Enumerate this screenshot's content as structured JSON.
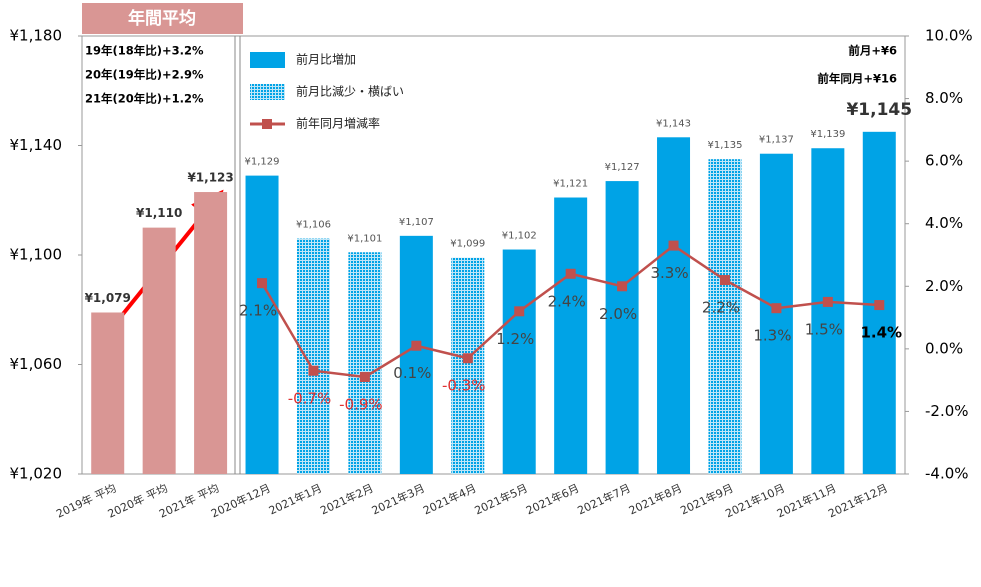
{
  "chart_data": {
    "type": "bar",
    "categories": [
      "2019年 平均",
      "2020年 平均",
      "2021年 平均",
      "2020年12月",
      "2021年1月",
      "2021年2月",
      "2021年3月",
      "2021年4月",
      "2021年5月",
      "2021年6月",
      "2021年7月",
      "2021年8月",
      "2021年9月",
      "2021年10月",
      "2021年11月",
      "2021年12月"
    ],
    "series": [
      {
        "name": "年間平均",
        "type": "bar",
        "color": "#d99694",
        "values": [
          1079,
          1110,
          1123,
          null,
          null,
          null,
          null,
          null,
          null,
          null,
          null,
          null,
          null,
          null,
          null,
          null
        ],
        "value_labels": [
          "¥1,079",
          "¥1,110",
          "¥1,123",
          null,
          null,
          null,
          null,
          null,
          null,
          null,
          null,
          null,
          null,
          null,
          null,
          null
        ]
      },
      {
        "name": "前月比増加",
        "type": "bar",
        "color": "#00a3e6",
        "values": [
          null,
          null,
          null,
          1129,
          null,
          null,
          1107,
          null,
          1102,
          1121,
          1127,
          1143,
          null,
          1137,
          1139,
          1145
        ],
        "value_labels": [
          null,
          null,
          null,
          "¥1,129",
          null,
          null,
          "¥1,107",
          null,
          "¥1,102",
          "¥1,121",
          "¥1,127",
          "¥1,143",
          null,
          "¥1,137",
          "¥1,139",
          "¥1,145"
        ]
      },
      {
        "name": "前月比減少・横ばい",
        "type": "bar",
        "color": "#00a3e6",
        "pattern": "dots",
        "values": [
          null,
          null,
          null,
          null,
          1106,
          1101,
          null,
          1099,
          null,
          null,
          null,
          null,
          1135,
          null,
          null,
          null
        ],
        "value_labels": [
          null,
          null,
          null,
          null,
          "¥1,106",
          "¥1,101",
          null,
          "¥1,099",
          null,
          null,
          null,
          null,
          "¥1,135",
          null,
          null,
          null
        ]
      },
      {
        "name": "前年同月増減率",
        "type": "line",
        "axis": "y2",
        "color": "#c0504d",
        "values": [
          null,
          null,
          null,
          2.1,
          -0.7,
          -0.9,
          0.1,
          -0.3,
          1.2,
          2.4,
          2.0,
          3.3,
          2.2,
          1.3,
          1.5,
          1.4
        ],
        "value_labels": [
          null,
          null,
          null,
          "2.1%",
          "-0.7%",
          "-0.9%",
          "0.1%",
          "-0.3%",
          "1.2%",
          "2.4%",
          "2.0%",
          "3.3%",
          "2.2%",
          "1.3%",
          "1.5%",
          "1.4%"
        ]
      }
    ],
    "ylim": [
      1020,
      1180
    ],
    "yticks": [
      {
        "value": 1020,
        "label": "¥1,020"
      },
      {
        "value": 1060,
        "label": "¥1,060"
      },
      {
        "value": 1100,
        "label": "¥1,100"
      },
      {
        "value": 1140,
        "label": "¥1,140"
      },
      {
        "value": 1180,
        "label": "¥1,180"
      }
    ],
    "y2lim": [
      -4,
      10
    ],
    "y2ticks": [
      {
        "value": -4,
        "label": "-4.0%"
      },
      {
        "value": -2,
        "label": "-2.0%"
      },
      {
        "value": 0,
        "label": "0.0%"
      },
      {
        "value": 2,
        "label": "2.0%"
      },
      {
        "value": 4,
        "label": "4.0%"
      },
      {
        "value": 6,
        "label": "6.0%"
      },
      {
        "value": 8,
        "label": "8.0%"
      },
      {
        "value": 10,
        "label": "10.0%"
      }
    ],
    "annotations": [
      "19年(18年比)+3.2%",
      "20年(19年比)+2.9%",
      "21年(20年比)+1.2%",
      "前月+¥6",
      "前年同月+¥16"
    ],
    "grid": false
  }
}
